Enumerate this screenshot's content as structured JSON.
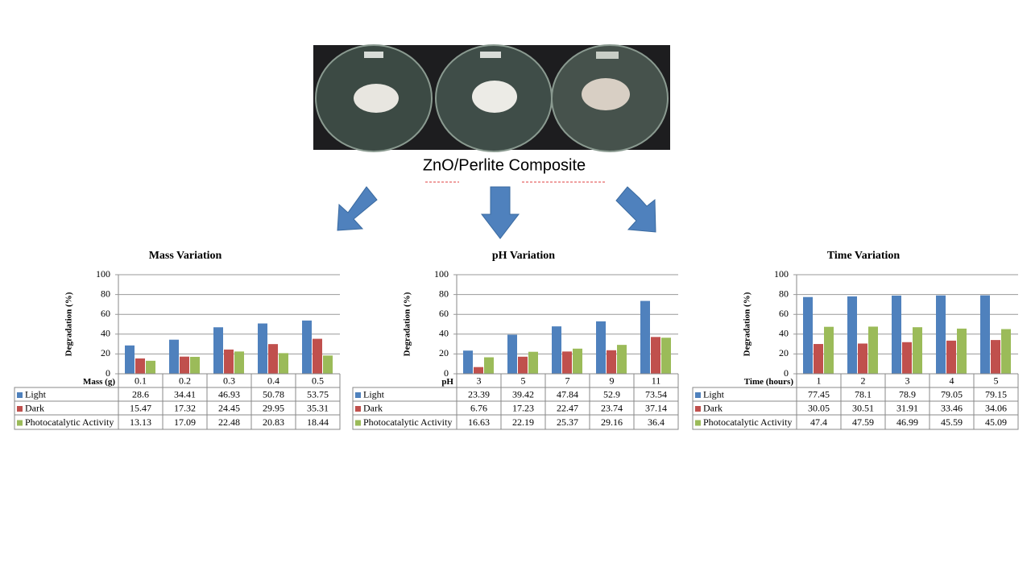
{
  "caption": "ZnO/Perlite Composite",
  "chart_data": [
    {
      "type": "bar",
      "title": "Mass Variation",
      "y_label": "Degradation (%)",
      "x_label": "Mass (g)",
      "categories": [
        "0.1",
        "0.2",
        "0.3",
        "0.4",
        "0.5"
      ],
      "series": [
        {
          "name": "Light",
          "color": "#4f81bd",
          "values": [
            28.6,
            34.41,
            46.93,
            50.78,
            53.75
          ]
        },
        {
          "name": "Dark",
          "color": "#c0504d",
          "values": [
            15.47,
            17.32,
            24.45,
            29.95,
            35.31
          ]
        },
        {
          "name": "Photocatalytic Activity",
          "color": "#9bbb59",
          "values": [
            13.13,
            17.09,
            22.48,
            20.83,
            18.44
          ]
        }
      ],
      "ylim": [
        0,
        100
      ],
      "yticks": [
        0,
        20,
        40,
        60,
        80,
        100
      ],
      "grid": true
    },
    {
      "type": "bar",
      "title": "pH Variation",
      "y_label": "Degradation (%)",
      "x_label": "pH",
      "categories": [
        "3",
        "5",
        "7",
        "9",
        "11"
      ],
      "series": [
        {
          "name": "Light",
          "color": "#4f81bd",
          "values": [
            23.39,
            39.42,
            47.84,
            52.9,
            73.54
          ]
        },
        {
          "name": "Dark",
          "color": "#c0504d",
          "values": [
            6.76,
            17.23,
            22.47,
            23.74,
            37.14
          ]
        },
        {
          "name": "Photocatalytic Activity",
          "color": "#9bbb59",
          "values": [
            16.63,
            22.19,
            25.37,
            29.16,
            36.4
          ]
        }
      ],
      "ylim": [
        0,
        100
      ],
      "yticks": [
        0,
        20,
        40,
        60,
        80,
        100
      ],
      "grid": true
    },
    {
      "type": "bar",
      "title": "Time Variation",
      "y_label": "Degradation (%)",
      "x_label": "Time (hours)",
      "categories": [
        "1",
        "2",
        "3",
        "4",
        "5"
      ],
      "series": [
        {
          "name": "Light",
          "color": "#4f81bd",
          "values": [
            77.45,
            78.1,
            78.9,
            79.05,
            79.15
          ]
        },
        {
          "name": "Dark",
          "color": "#c0504d",
          "values": [
            30.05,
            30.51,
            31.91,
            33.46,
            34.06
          ]
        },
        {
          "name": "Photocatalytic Activity",
          "color": "#9bbb59",
          "values": [
            47.4,
            47.59,
            46.99,
            45.59,
            45.09
          ]
        }
      ],
      "ylim": [
        0,
        100
      ],
      "yticks": [
        0,
        20,
        40,
        60,
        80,
        100
      ],
      "grid": true
    }
  ]
}
